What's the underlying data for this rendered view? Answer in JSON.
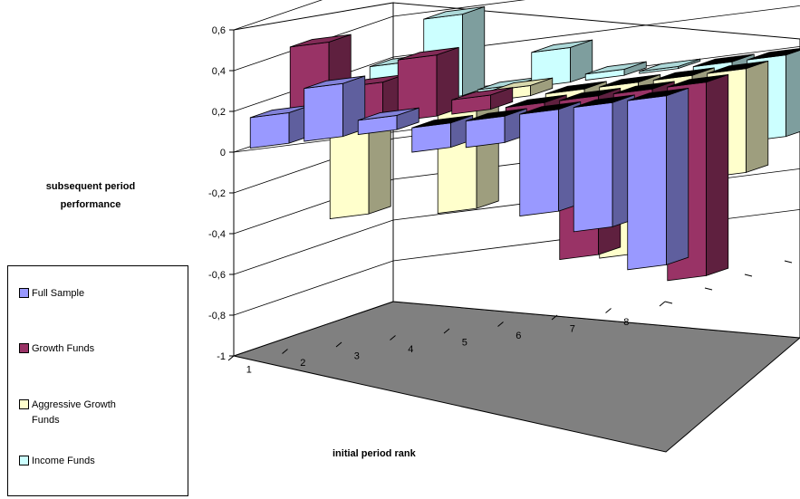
{
  "chart_data": {
    "type": "bar",
    "categories": [
      "1",
      "2",
      "3",
      "4",
      "5",
      "6",
      "7",
      "8"
    ],
    "series": [
      {
        "name": "Full Sample",
        "color": "#9999ff",
        "values": [
          0.15,
          0.26,
          0.07,
          -0.12,
          -0.13,
          -0.5,
          -0.61,
          -0.83
        ]
      },
      {
        "name": "Growth Funds",
        "color": "#993366",
        "values": [
          0.43,
          0.2,
          0.3,
          0.07,
          -0.1,
          -0.78,
          -0.38,
          -0.95
        ]
      },
      {
        "name": "Aggressive Growth Funds",
        "color": "#ffffcc",
        "values": [
          -0.48,
          0.03,
          -0.52,
          0.05,
          -0.55,
          -0.84,
          -0.05,
          -0.51
        ]
      },
      {
        "name": "Income Funds",
        "color": "#ccffff",
        "values": [
          0.2,
          0.4,
          0.02,
          0.17,
          0.03,
          0.01,
          -0.08,
          -0.4
        ]
      }
    ],
    "xlabel": "initial period rank",
    "ylabel": "subsequent period performance",
    "ylim": [
      -1,
      0.6
    ],
    "yticks": [
      "0,6",
      "0,4",
      "0,2",
      "0",
      "-0,2",
      "-0,4",
      "-0,6",
      "-0,8",
      "-1"
    ],
    "legend_position": "left",
    "grid": true,
    "projection": "3d"
  }
}
